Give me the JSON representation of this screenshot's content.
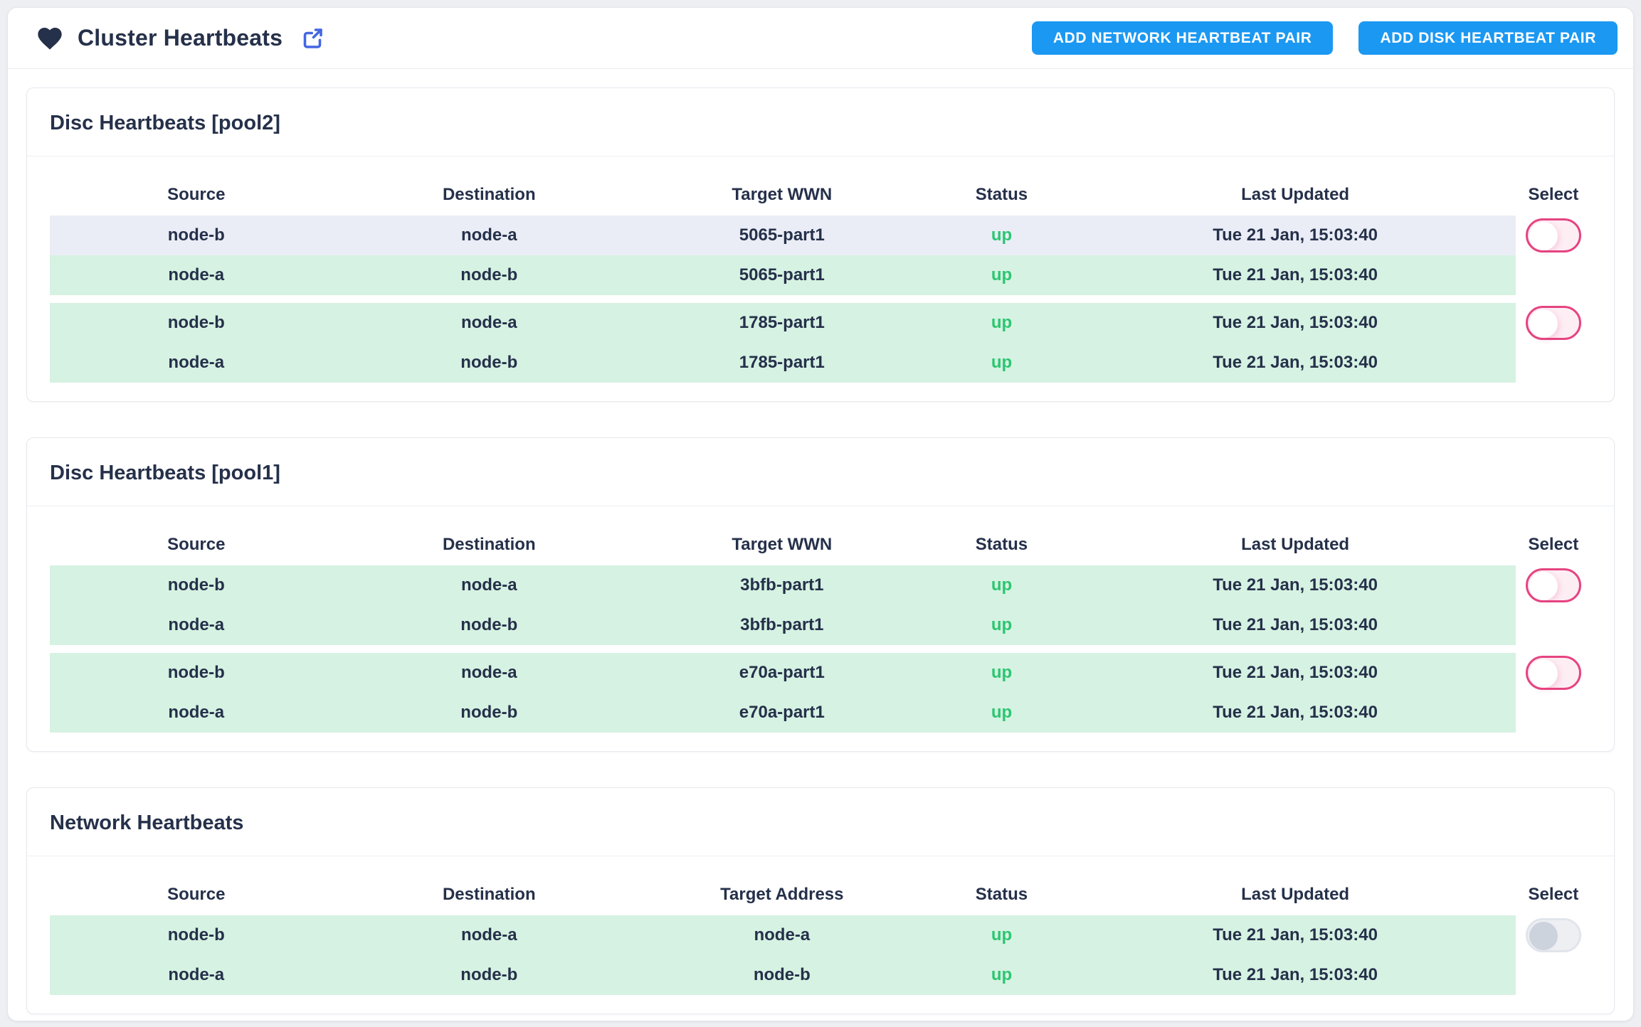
{
  "header": {
    "title": "Cluster Heartbeats",
    "buttons": [
      {
        "label": "ADD NETWORK HEARTBEAT PAIR"
      },
      {
        "label": "ADD DISK HEARTBEAT PAIR"
      }
    ]
  },
  "colors": {
    "button_blue": "#1b98f2",
    "external_link_blue": "#4467e3",
    "heading_navy": "#25304a",
    "row_green": "#d6f2e2",
    "row_lavender": "#eaedf6",
    "status_up_green": "#2bc671",
    "toggle_pink_border": "#e64481",
    "toggle_pink_fill": "#fdeef4",
    "toggle_gray_fill": "#edeff3",
    "toggle_gray_knob": "#ccd3dd"
  },
  "cards": [
    {
      "title": "Disc Heartbeats [pool2]",
      "columns": [
        "Source",
        "Destination",
        "Target WWN",
        "Status",
        "Last Updated",
        "Select"
      ],
      "groups": [
        {
          "toggle_style": "pink",
          "toggle_state": "off",
          "rows": [
            {
              "source": "node-b",
              "destination": "node-a",
              "target": "5065-part1",
              "status": "up",
              "last_updated": "Tue 21 Jan, 15:03:40",
              "tint": "lavender"
            },
            {
              "source": "node-a",
              "destination": "node-b",
              "target": "5065-part1",
              "status": "up",
              "last_updated": "Tue 21 Jan, 15:03:40",
              "tint": "green"
            }
          ]
        },
        {
          "toggle_style": "pink",
          "toggle_state": "off",
          "rows": [
            {
              "source": "node-b",
              "destination": "node-a",
              "target": "1785-part1",
              "status": "up",
              "last_updated": "Tue 21 Jan, 15:03:40",
              "tint": "green"
            },
            {
              "source": "node-a",
              "destination": "node-b",
              "target": "1785-part1",
              "status": "up",
              "last_updated": "Tue 21 Jan, 15:03:40",
              "tint": "green"
            }
          ]
        }
      ]
    },
    {
      "title": "Disc Heartbeats [pool1]",
      "columns": [
        "Source",
        "Destination",
        "Target WWN",
        "Status",
        "Last Updated",
        "Select"
      ],
      "groups": [
        {
          "toggle_style": "pink",
          "toggle_state": "off",
          "rows": [
            {
              "source": "node-b",
              "destination": "node-a",
              "target": "3bfb-part1",
              "status": "up",
              "last_updated": "Tue 21 Jan, 15:03:40",
              "tint": "green"
            },
            {
              "source": "node-a",
              "destination": "node-b",
              "target": "3bfb-part1",
              "status": "up",
              "last_updated": "Tue 21 Jan, 15:03:40",
              "tint": "green"
            }
          ]
        },
        {
          "toggle_style": "pink",
          "toggle_state": "off",
          "rows": [
            {
              "source": "node-b",
              "destination": "node-a",
              "target": "e70a-part1",
              "status": "up",
              "last_updated": "Tue 21 Jan, 15:03:40",
              "tint": "green"
            },
            {
              "source": "node-a",
              "destination": "node-b",
              "target": "e70a-part1",
              "status": "up",
              "last_updated": "Tue 21 Jan, 15:03:40",
              "tint": "green"
            }
          ]
        }
      ]
    },
    {
      "title": "Network Heartbeats",
      "columns": [
        "Source",
        "Destination",
        "Target Address",
        "Status",
        "Last Updated",
        "Select"
      ],
      "groups": [
        {
          "toggle_style": "gray",
          "toggle_state": "off",
          "rows": [
            {
              "source": "node-b",
              "destination": "node-a",
              "target": "node-a",
              "status": "up",
              "last_updated": "Tue 21 Jan, 15:03:40",
              "tint": "green"
            },
            {
              "source": "node-a",
              "destination": "node-b",
              "target": "node-b",
              "status": "up",
              "last_updated": "Tue 21 Jan, 15:03:40",
              "tint": "green"
            }
          ]
        }
      ]
    }
  ]
}
